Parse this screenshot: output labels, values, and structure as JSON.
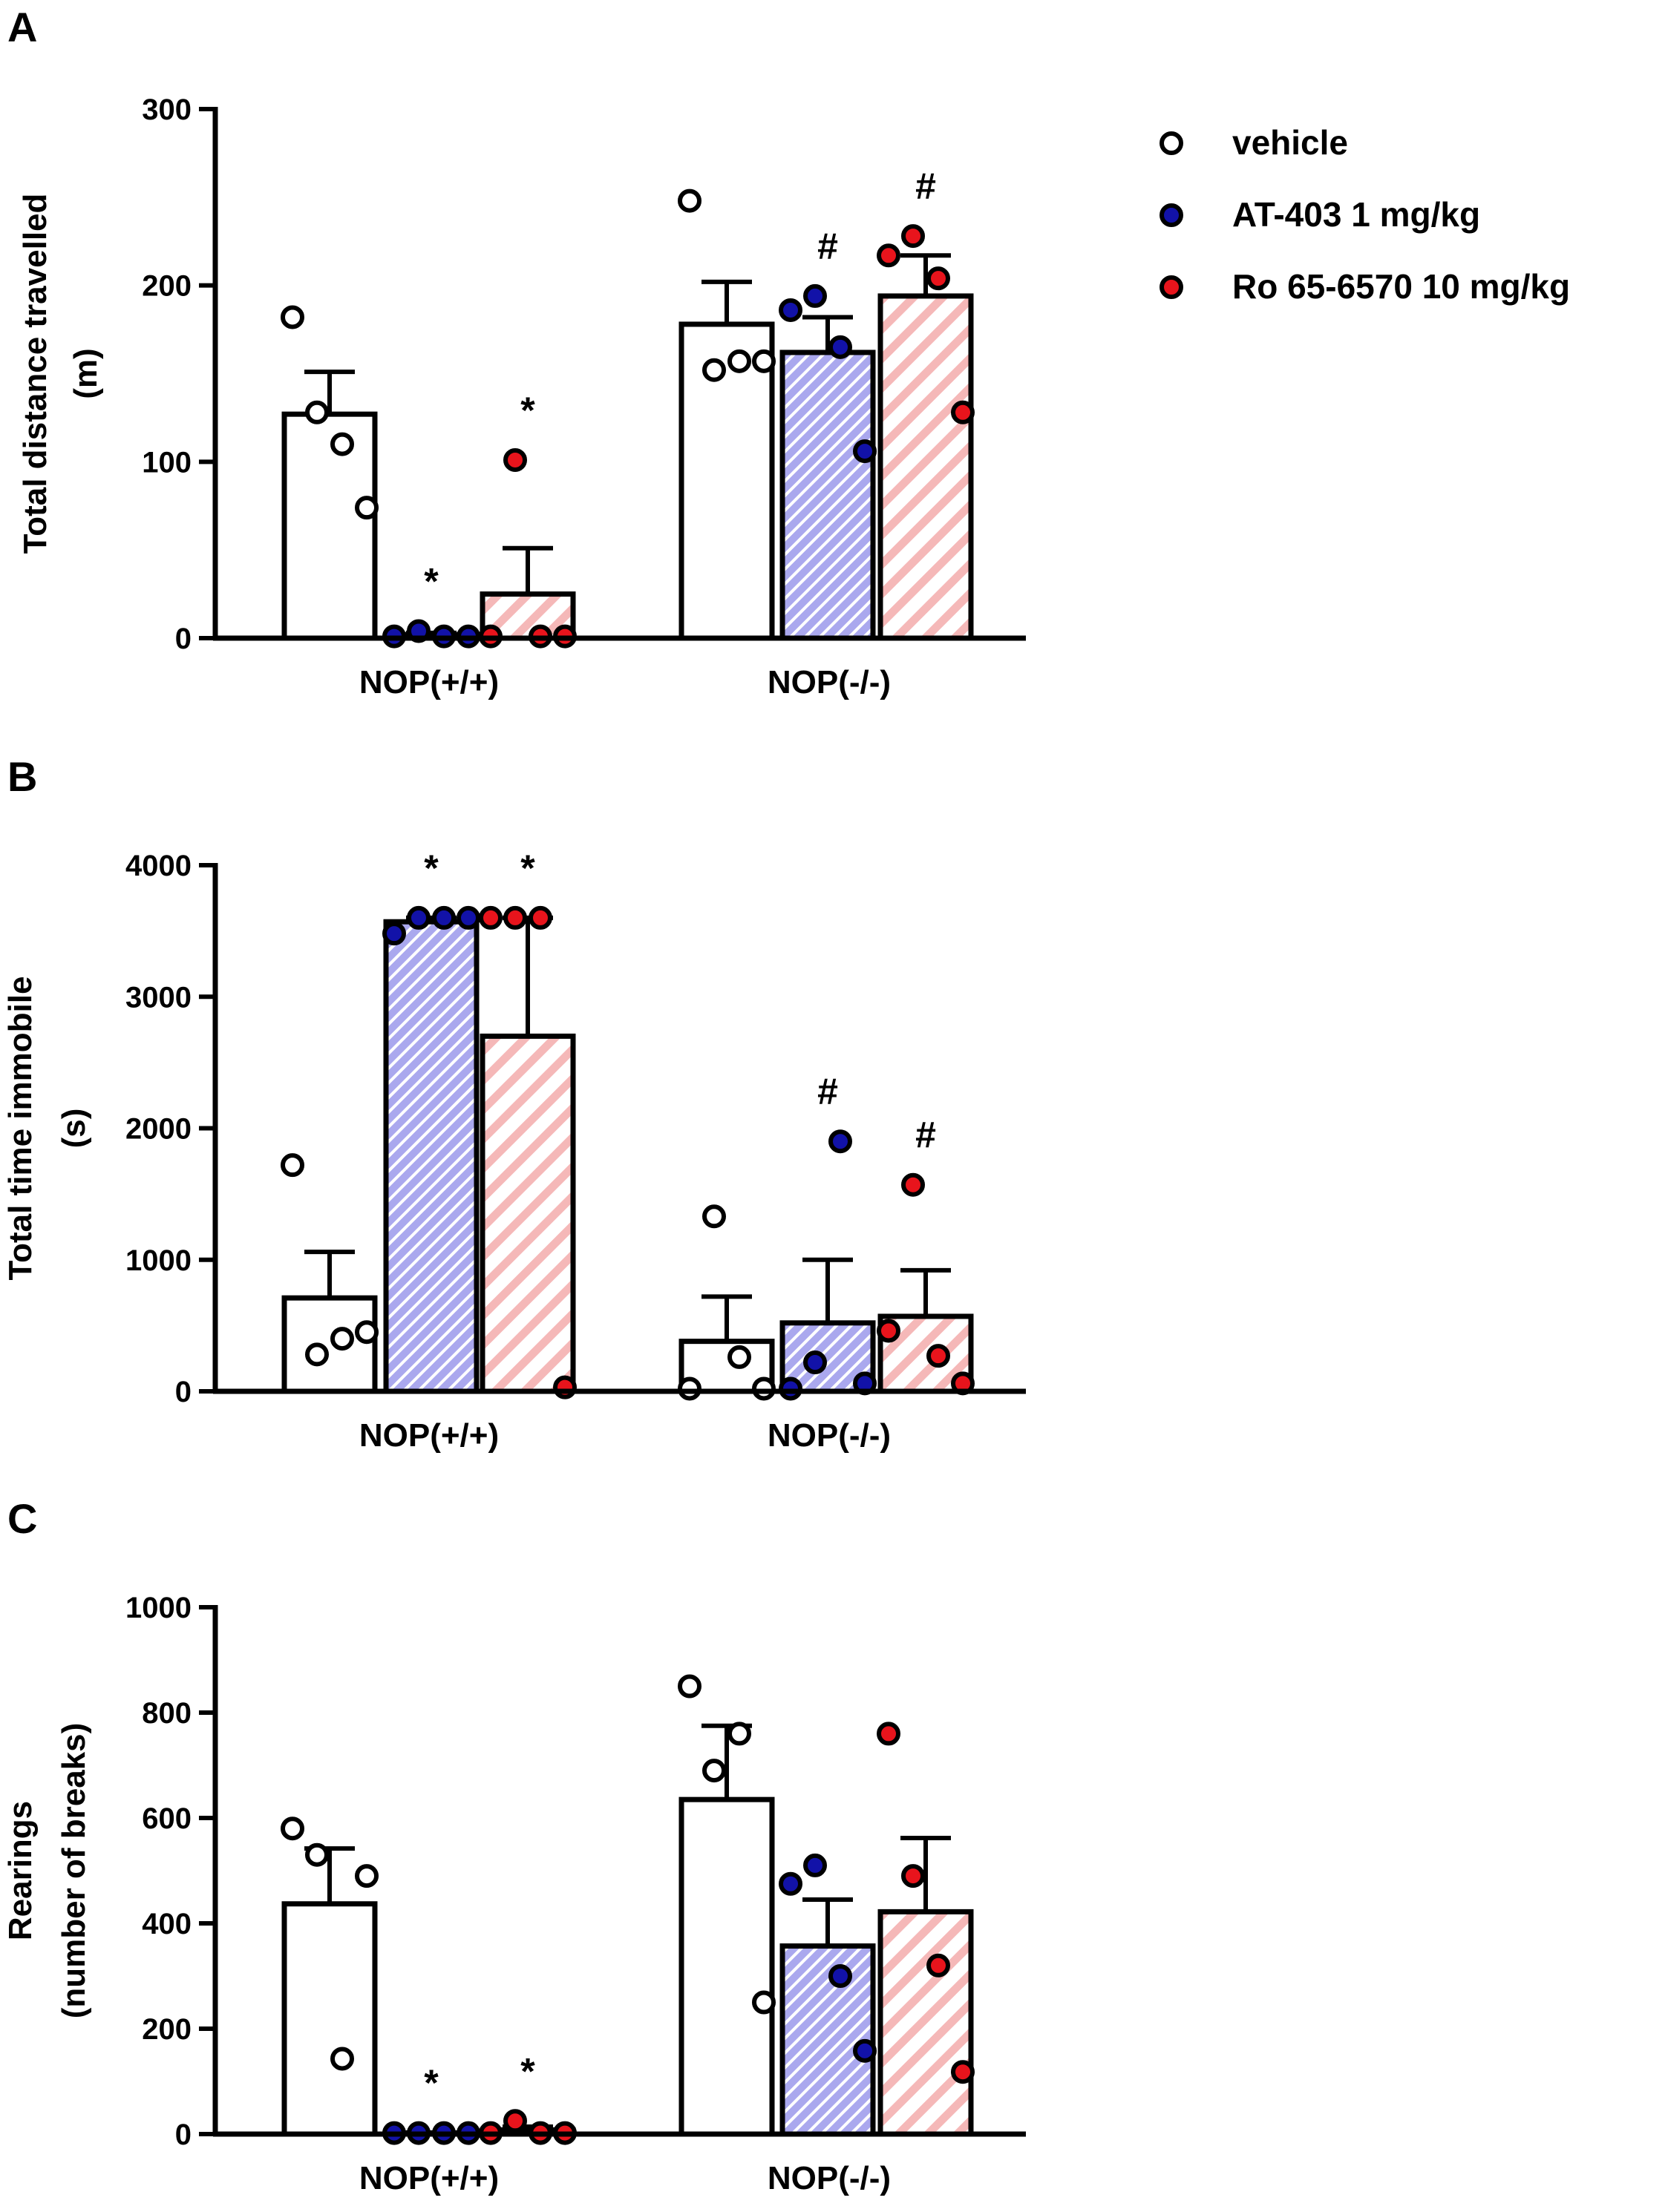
{
  "legend": {
    "items": [
      {
        "label": "vehicle",
        "marker": "#ffffff"
      },
      {
        "label": "AT-403 1 mg/kg",
        "marker": "#1212a8"
      },
      {
        "label": "Ro 65-6570 10 mg/kg",
        "marker": "#e8141c"
      }
    ]
  },
  "colors": {
    "hatch_blue_bg": "#aaa8ee",
    "hatch_blue_line": "#ffffff",
    "hatch_pink_bg": "#ffffff",
    "hatch_pink_line": "#f5b8b8",
    "axis": "#000000"
  },
  "chart_data": [
    {
      "panel": "A",
      "type": "bar",
      "ylabel_lines": [
        "Total distance travelled",
        "(m)"
      ],
      "ylim": [
        0,
        300
      ],
      "yticks": [
        0,
        100,
        200,
        300
      ],
      "ytick_labels": [
        "0",
        "100",
        "200",
        "300"
      ],
      "groups": [
        "NOP(+/+)",
        "NOP(-/-)"
      ],
      "series_names": [
        "vehicle",
        "AT-403 1 mg/kg",
        "Ro 65-6570 10 mg/kg"
      ],
      "bars": [
        {
          "group": 0,
          "series": 0,
          "mean": 127,
          "sem": 24,
          "points": [
            182,
            128,
            110,
            74
          ],
          "sig": ""
        },
        {
          "group": 0,
          "series": 1,
          "mean": 2,
          "sem": 1,
          "points": [
            1,
            4,
            1,
            1
          ],
          "sig": "*"
        },
        {
          "group": 0,
          "series": 2,
          "mean": 25,
          "sem": 26,
          "points": [
            1,
            101,
            1,
            1
          ],
          "sig": "*"
        },
        {
          "group": 1,
          "series": 0,
          "mean": 178,
          "sem": 24,
          "points": [
            248,
            152,
            157,
            157
          ],
          "sig": ""
        },
        {
          "group": 1,
          "series": 1,
          "mean": 162,
          "sem": 20,
          "points": [
            186,
            194,
            165,
            106
          ],
          "sig": "#"
        },
        {
          "group": 1,
          "series": 2,
          "mean": 194,
          "sem": 23,
          "points": [
            217,
            228,
            204,
            128
          ],
          "sig": "#"
        }
      ]
    },
    {
      "panel": "B",
      "type": "bar",
      "ylabel_lines": [
        "Total time immobile",
        "(s)"
      ],
      "ylim": [
        0,
        4000
      ],
      "yticks": [
        0,
        1000,
        2000,
        3000,
        4000
      ],
      "ytick_labels": [
        "0",
        "1000",
        "2000",
        "3000",
        "4000"
      ],
      "groups": [
        "NOP(+/+)",
        "NOP(-/-)"
      ],
      "series_names": [
        "vehicle",
        "AT-403 1 mg/kg",
        "Ro 65-6570 10 mg/kg"
      ],
      "bars": [
        {
          "group": 0,
          "series": 0,
          "mean": 710,
          "sem": 350,
          "points": [
            1720,
            280,
            400,
            450
          ],
          "sig": ""
        },
        {
          "group": 0,
          "series": 1,
          "mean": 3570,
          "sem": 30,
          "points": [
            3480,
            3600,
            3600,
            3600
          ],
          "sig": "*"
        },
        {
          "group": 0,
          "series": 2,
          "mean": 2700,
          "sem": 900,
          "points": [
            3600,
            3600,
            3600,
            30
          ],
          "sig": "*"
        },
        {
          "group": 1,
          "series": 0,
          "mean": 380,
          "sem": 340,
          "points": [
            20,
            1330,
            260,
            20
          ],
          "sig": ""
        },
        {
          "group": 1,
          "series": 1,
          "mean": 520,
          "sem": 480,
          "points": [
            20,
            220,
            1900,
            60
          ],
          "sig": "#"
        },
        {
          "group": 1,
          "series": 2,
          "mean": 570,
          "sem": 350,
          "points": [
            460,
            1570,
            270,
            60
          ],
          "sig": "#"
        }
      ]
    },
    {
      "panel": "C",
      "type": "bar",
      "ylabel_lines": [
        "Rearings",
        "(number of breaks)"
      ],
      "ylim": [
        0,
        1000
      ],
      "yticks": [
        0,
        200,
        400,
        600,
        800,
        1000
      ],
      "ytick_labels": [
        "0",
        "200",
        "400",
        "600",
        "800",
        "1000"
      ],
      "groups": [
        "NOP(+/+)",
        "NOP(-/-)"
      ],
      "series_names": [
        "vehicle",
        "AT-403 1 mg/kg",
        "Ro 65-6570 10 mg/kg"
      ],
      "bars": [
        {
          "group": 0,
          "series": 0,
          "mean": 437,
          "sem": 105,
          "points": [
            580,
            530,
            143,
            490
          ],
          "sig": ""
        },
        {
          "group": 0,
          "series": 1,
          "mean": 2,
          "sem": 1,
          "points": [
            2,
            2,
            2,
            2
          ],
          "sig": "*"
        },
        {
          "group": 0,
          "series": 2,
          "mean": 8,
          "sem": 6,
          "points": [
            2,
            25,
            2,
            2
          ],
          "sig": "*"
        },
        {
          "group": 1,
          "series": 0,
          "mean": 635,
          "sem": 140,
          "points": [
            850,
            690,
            760,
            250
          ],
          "sig": ""
        },
        {
          "group": 1,
          "series": 1,
          "mean": 357,
          "sem": 88,
          "points": [
            475,
            510,
            300,
            158
          ],
          "sig": ""
        },
        {
          "group": 1,
          "series": 2,
          "mean": 422,
          "sem": 140,
          "points": [
            760,
            490,
            320,
            118
          ],
          "sig": ""
        }
      ]
    }
  ]
}
